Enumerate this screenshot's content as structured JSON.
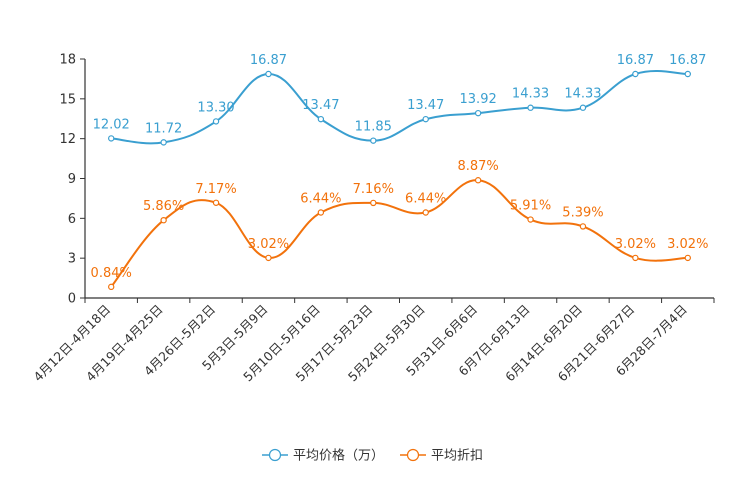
{
  "chart_data": {
    "type": "line",
    "title": "",
    "xlabel": "",
    "ylabel": "",
    "ylim": [
      0,
      18
    ],
    "yticks": [
      0,
      3,
      6,
      9,
      12,
      15,
      18
    ],
    "grid": false,
    "legend_position": "bottom-center",
    "categories": [
      "4月12日-4月18日",
      "4月19日-4月25日",
      "4月26日-5月2日",
      "5月3日-5月9日",
      "5月10日-5月16日",
      "5月17日-5月23日",
      "5月24日-5月30日",
      "5月31日-6月6日",
      "6月7日-6月13日",
      "6月14日-6月20日",
      "6月21日-6月27日",
      "6月28日-7月4日"
    ],
    "series": [
      {
        "name": "平均价格（万）",
        "color": "#3a9fd0",
        "values": [
          12.02,
          11.72,
          13.3,
          16.87,
          13.47,
          11.85,
          13.47,
          13.92,
          14.33,
          14.33,
          16.87,
          16.87
        ],
        "labels": [
          "12.02",
          "11.72",
          "13.30",
          "16.87",
          "13.47",
          "11.85",
          "13.47",
          "13.92",
          "14.33",
          "14.33",
          "16.87",
          "16.87"
        ]
      },
      {
        "name": "平均折扣",
        "color": "#f2720c",
        "values": [
          0.84,
          5.86,
          7.17,
          3.02,
          6.44,
          7.16,
          6.44,
          8.87,
          5.91,
          5.39,
          3.02,
          3.02
        ],
        "labels": [
          "0.84%",
          "5.86%",
          "7.17%",
          "3.02%",
          "6.44%",
          "7.16%",
          "6.44%",
          "8.87%",
          "5.91%",
          "5.39%",
          "3.02%",
          "3.02%"
        ]
      }
    ]
  }
}
